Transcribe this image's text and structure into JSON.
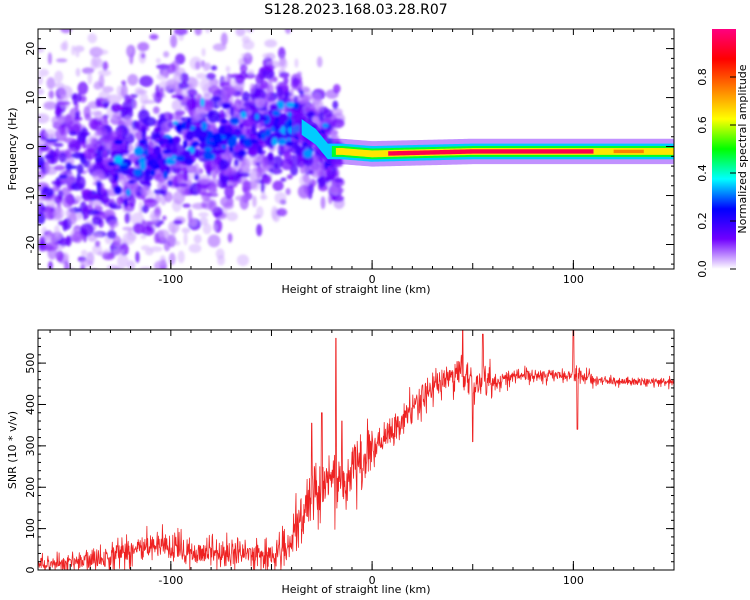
{
  "title": "S128.2023.168.03.28.R07",
  "chart_data": [
    {
      "type": "heatmap",
      "name": "spectrogram",
      "xlabel": "Height of straight line (km)",
      "ylabel": "Frequency (Hz)",
      "xlim": [
        -166,
        150
      ],
      "ylim": [
        -25,
        24
      ],
      "xticks_labeled": [
        -100,
        0,
        100
      ],
      "yticks_labeled": [
        -20,
        -10,
        0,
        10,
        20
      ],
      "colorbar": {
        "label": "Normalized spectral amplitude",
        "range": [
          0,
          1
        ],
        "ticks": [
          0.0,
          0.2,
          0.4,
          0.6,
          0.8
        ],
        "tick_labels": [
          "0.0",
          "0.2",
          "0.4",
          "0.6",
          "0.8"
        ],
        "colormap": [
          "#ffffff",
          "#7000ff",
          "#0000ff",
          "#00ffff",
          "#00ff00",
          "#ffff00",
          "#ff8000",
          "#ff0000",
          "#ff0080"
        ]
      },
      "ridge": {
        "description": "dominant frequency track",
        "points_km_hz": [
          [
            -120,
            -5
          ],
          [
            -110,
            -2
          ],
          [
            -90,
            1
          ],
          [
            -70,
            2
          ],
          [
            -55,
            3
          ],
          [
            -40,
            5
          ],
          [
            -35,
            4
          ],
          [
            -28,
            2
          ],
          [
            -22,
            -1
          ],
          [
            -15,
            -1
          ],
          [
            0,
            -1.5
          ],
          [
            50,
            -1
          ],
          [
            100,
            -1
          ],
          [
            150,
            -1
          ]
        ]
      }
    },
    {
      "type": "line",
      "name": "snr",
      "xlabel": "Height of straight line (km)",
      "ylabel": "SNR (10 * v/v)",
      "xlim": [
        -166,
        150
      ],
      "ylim": [
        0,
        580
      ],
      "xticks_labeled": [
        -100,
        0,
        100
      ],
      "yticks_labeled": [
        0,
        100,
        200,
        300,
        400,
        500
      ],
      "color": "#ee2222",
      "series": [
        {
          "name": "SNR",
          "anchor_points_km_snr": [
            [
              -166,
              15
            ],
            [
              -140,
              20
            ],
            [
              -125,
              45
            ],
            [
              -110,
              55
            ],
            [
              -90,
              45
            ],
            [
              -70,
              40
            ],
            [
              -50,
              35
            ],
            [
              -40,
              60
            ],
            [
              -30,
              180
            ],
            [
              -20,
              230
            ],
            [
              -15,
              190
            ],
            [
              -10,
              240
            ],
            [
              0,
              290
            ],
            [
              10,
              330
            ],
            [
              20,
              390
            ],
            [
              30,
              440
            ],
            [
              40,
              470
            ],
            [
              45,
              480
            ],
            [
              50,
              440
            ],
            [
              55,
              470
            ],
            [
              60,
              450
            ],
            [
              70,
              470
            ],
            [
              100,
              470
            ],
            [
              120,
              455
            ],
            [
              150,
              455
            ]
          ],
          "spikes_km_snr": [
            [
              -30,
              355
            ],
            [
              -25,
              380
            ],
            [
              -18,
              560
            ],
            [
              -15,
              360
            ],
            [
              45,
              580
            ],
            [
              55,
              570
            ],
            [
              100,
              580
            ],
            [
              102,
              340
            ],
            [
              50,
              310
            ]
          ]
        }
      ]
    }
  ]
}
